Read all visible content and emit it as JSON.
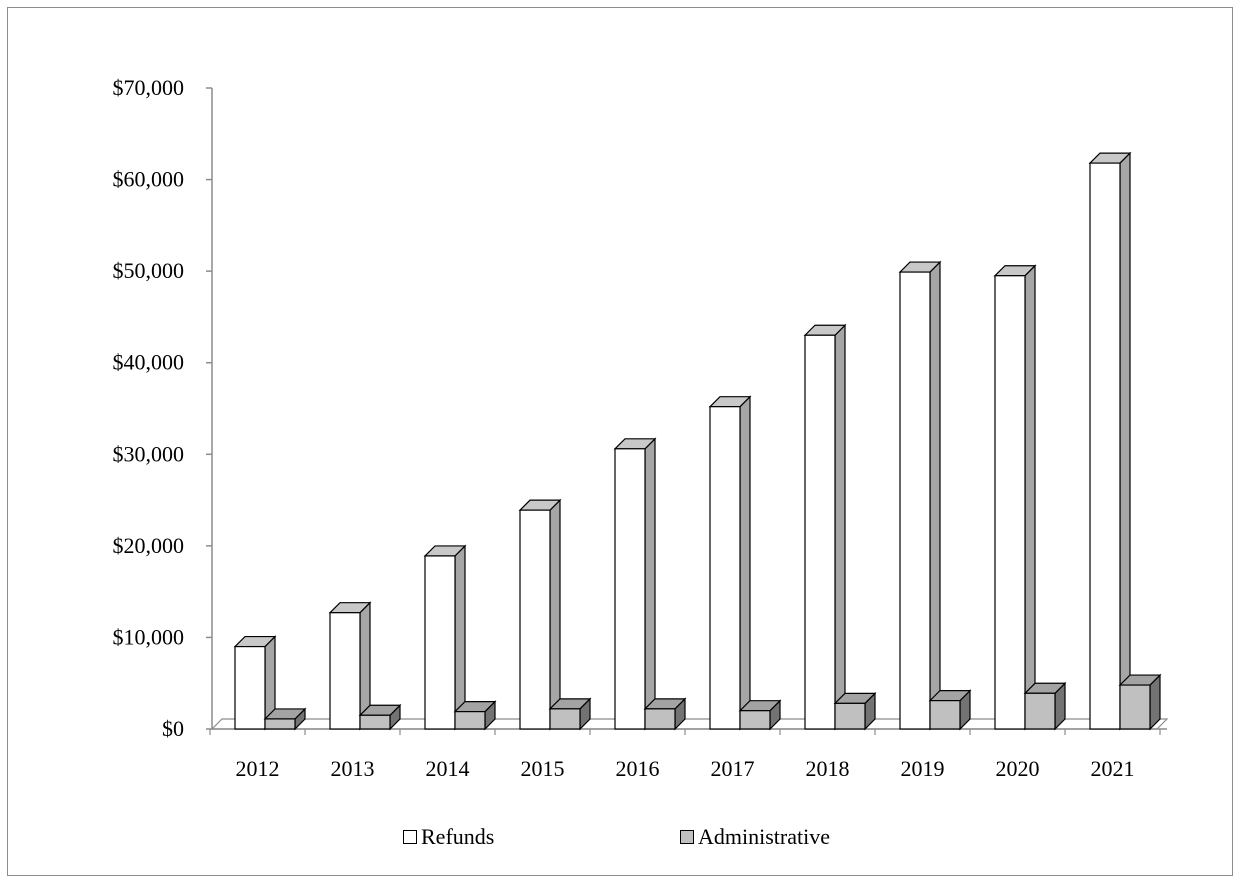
{
  "chart_data": {
    "type": "bar",
    "style": "3d-clustered-column",
    "categories": [
      "2012",
      "2013",
      "2014",
      "2015",
      "2016",
      "2017",
      "2018",
      "2019",
      "2020",
      "2021"
    ],
    "series": [
      {
        "name": "Refunds",
        "color": "#ffffff",
        "values": [
          9000,
          12700,
          18900,
          23900,
          30600,
          35200,
          43000,
          49900,
          49500,
          61800
        ]
      },
      {
        "name": "Administrative",
        "color": "#c0c0c0",
        "values": [
          1100,
          1500,
          1900,
          2200,
          2200,
          2000,
          2800,
          3100,
          3900,
          4800
        ]
      }
    ],
    "y_ticks": [
      "$0",
      "$10,000",
      "$20,000",
      "$30,000",
      "$40,000",
      "$50,000",
      "$60,000",
      "$70,000"
    ],
    "ylim": [
      0,
      70000
    ],
    "title": "",
    "xlabel": "",
    "ylabel": "",
    "grid": false,
    "legend_position": "bottom"
  }
}
